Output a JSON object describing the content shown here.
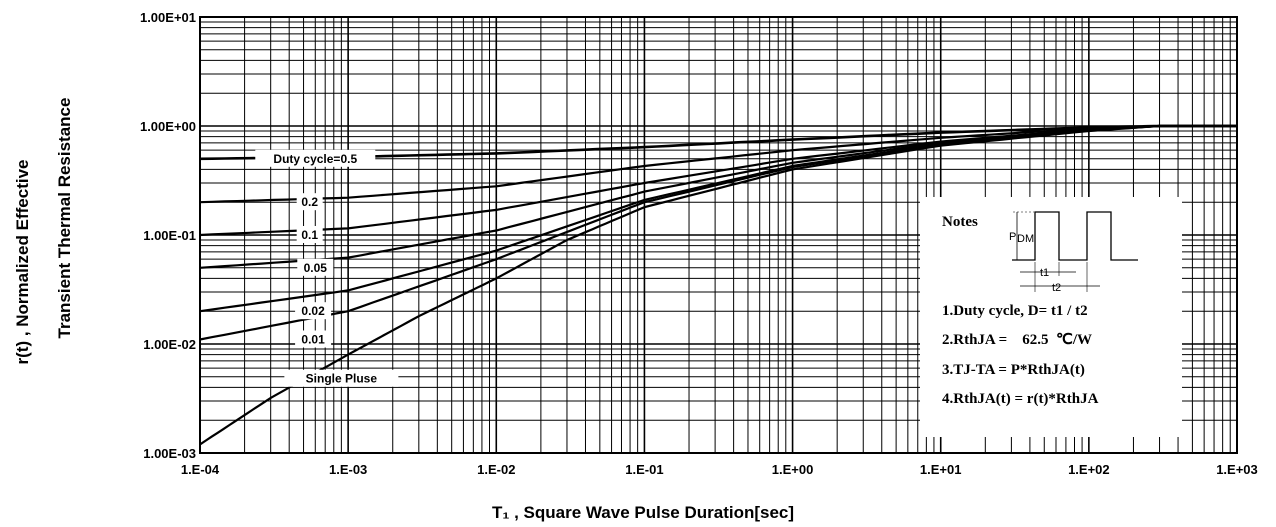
{
  "chart_data": {
    "type": "line",
    "xscale": "log",
    "yscale": "log",
    "xlim": [
      0.0001,
      1000
    ],
    "ylim": [
      0.001,
      10
    ],
    "grid": true,
    "xlabel": "T₁ , Square Wave Pulse Duration[sec]",
    "ylabel_line1": "r(t) , Normalized Effective",
    "ylabel_line2": "Transient Thermal Resistance",
    "x_tick_labels": [
      "1.E-04",
      "1.E-03",
      "1.E-02",
      "1.E-01",
      "1.E+00",
      "1.E+01",
      "1.E+02",
      "1.E+03"
    ],
    "y_tick_labels": [
      "1.00E-03",
      "1.00E-02",
      "1.00E-01",
      "1.00E+00",
      "1.00E+01"
    ],
    "series": [
      {
        "name": "Duty cycle=0.5",
        "x": [
          0.0001,
          0.001,
          0.01,
          0.1,
          1,
          10,
          100,
          300,
          1000
        ],
        "y": [
          0.5,
          0.52,
          0.56,
          0.64,
          0.75,
          0.87,
          0.97,
          1.0,
          1.0
        ]
      },
      {
        "name": "0.2",
        "x": [
          0.0001,
          0.001,
          0.01,
          0.1,
          1,
          10,
          100,
          300,
          1000
        ],
        "y": [
          0.2,
          0.22,
          0.28,
          0.43,
          0.6,
          0.78,
          0.95,
          1.0,
          1.0
        ]
      },
      {
        "name": "0.1",
        "x": [
          0.0001,
          0.001,
          0.01,
          0.1,
          1,
          10,
          100,
          300,
          1000
        ],
        "y": [
          0.1,
          0.115,
          0.17,
          0.3,
          0.5,
          0.72,
          0.93,
          1.0,
          1.0
        ]
      },
      {
        "name": "0.05",
        "x": [
          0.0001,
          0.001,
          0.01,
          0.1,
          1,
          10,
          100,
          300,
          1000
        ],
        "y": [
          0.05,
          0.062,
          0.11,
          0.25,
          0.46,
          0.7,
          0.92,
          1.0,
          1.0
        ]
      },
      {
        "name": "0.02",
        "x": [
          0.0001,
          0.001,
          0.01,
          0.1,
          1,
          10,
          100,
          300,
          1000
        ],
        "y": [
          0.02,
          0.031,
          0.072,
          0.21,
          0.43,
          0.68,
          0.92,
          1.0,
          1.0
        ]
      },
      {
        "name": "0.01",
        "x": [
          0.0001,
          0.001,
          0.01,
          0.1,
          1,
          10,
          100,
          300,
          1000
        ],
        "y": [
          0.011,
          0.02,
          0.06,
          0.2,
          0.42,
          0.67,
          0.91,
          1.0,
          1.0
        ]
      },
      {
        "name": "Single Pluse",
        "x": [
          0.0001,
          0.0003,
          0.001,
          0.003,
          0.01,
          0.03,
          0.1,
          1,
          10,
          100,
          300,
          1000
        ],
        "y": [
          0.0012,
          0.0032,
          0.008,
          0.018,
          0.04,
          0.09,
          0.18,
          0.4,
          0.66,
          0.9,
          1.0,
          1.0
        ]
      }
    ],
    "curve_labels": [
      "Duty cycle=0.5",
      "0.2",
      "0.1",
      "0.05",
      "0.02",
      "0.01",
      "Single Pluse"
    ]
  },
  "notes": {
    "title": "Notes",
    "pdm": "P",
    "pdm_sub": "DM",
    "t1": "t1",
    "t2": "t2",
    "lines": [
      "1.Duty cycle, D= t1 / t2",
      "2.RthJA =    62.5  ℃/W",
      "3.TJ-TA = P*RthJA(t)",
      "4.RthJA(t) = r(t)*RthJA"
    ]
  }
}
